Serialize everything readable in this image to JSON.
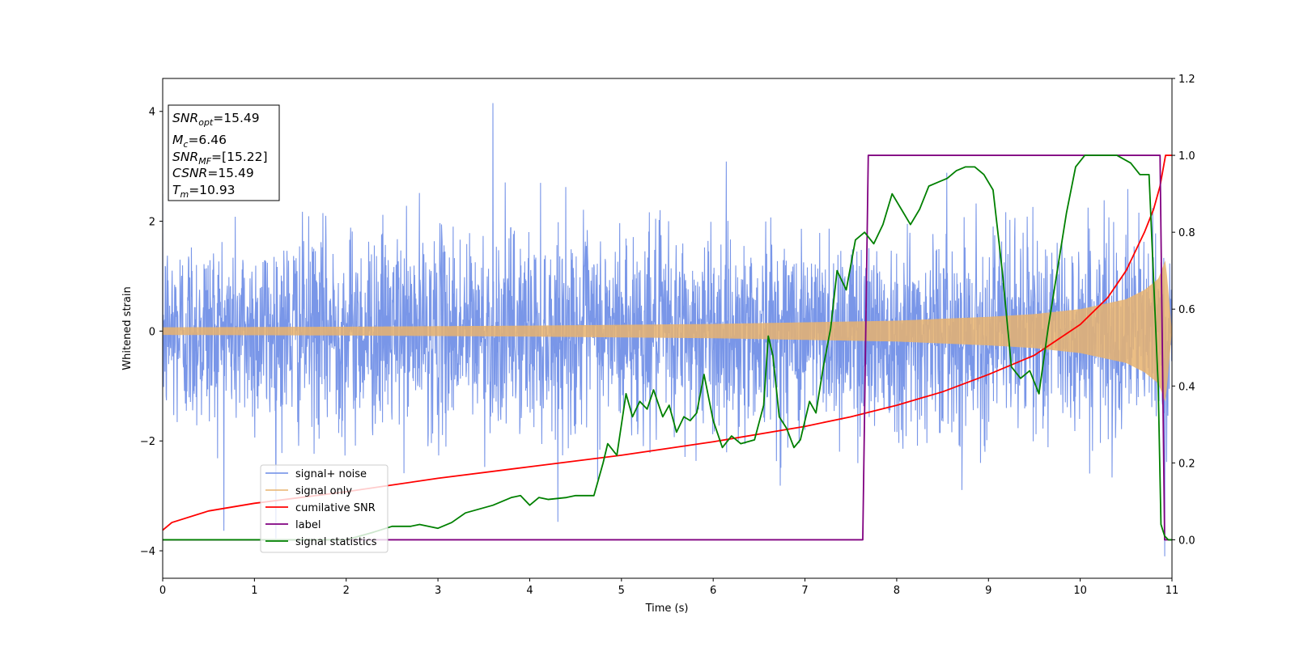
{
  "chart_data": {
    "type": "line",
    "xlabel": "Time (s)",
    "ylabel": "Whitened strain",
    "xlim": [
      0,
      11
    ],
    "ylim": [
      -4.5,
      4.6
    ],
    "y2lim": [
      -0.1,
      1.2
    ],
    "xticks": [
      "0",
      "1",
      "2",
      "3",
      "4",
      "5",
      "6",
      "7",
      "8",
      "9",
      "10",
      "11"
    ],
    "yticks": [
      "−4",
      "−2",
      "0",
      "2",
      "4"
    ],
    "y2ticks": [
      "0.0",
      "0.2",
      "0.4",
      "0.6",
      "0.8",
      "1.0",
      "1.2"
    ],
    "grid": false,
    "legend_position": "lower-left",
    "info_box": {
      "line1": "SNR_opt=15.49",
      "line2": "M_c=6.46",
      "line3": "SNR_MF=[15.22]",
      "line4": "CSNR=15.49",
      "line5": "T_m=10.93"
    },
    "series": [
      {
        "name": "signal+ noise",
        "axis": "left",
        "color": "#6a8be6",
        "description_values": {
          "std": 0.9,
          "max_peak": 4.15,
          "max_peak_time": 3.6,
          "min_peak": -4.1,
          "min_peak_time": 10.92
        }
      },
      {
        "name": "signal only",
        "axis": "left",
        "color": "#e8b36f",
        "envelope": {
          "x": [
            0,
            2,
            4,
            6,
            7,
            8,
            9,
            9.5,
            10,
            10.5,
            10.7,
            10.85,
            10.93,
            11
          ],
          "amplitude": [
            0.07,
            0.08,
            0.1,
            0.13,
            0.16,
            0.19,
            0.26,
            0.31,
            0.4,
            0.58,
            0.75,
            0.95,
            1.3,
            0
          ]
        }
      },
      {
        "name": "cumilative SNR",
        "axis": "right",
        "color": "#ff0000",
        "x": [
          0,
          0.1,
          0.5,
          1,
          2,
          3,
          4,
          5,
          6,
          7,
          7.5,
          8,
          8.5,
          9,
          9.5,
          10,
          10.3,
          10.5,
          10.7,
          10.8,
          10.87,
          10.9,
          10.93,
          11
        ],
        "y": [
          0.025,
          0.045,
          0.075,
          0.095,
          0.125,
          0.16,
          0.19,
          0.22,
          0.255,
          0.295,
          0.32,
          0.35,
          0.385,
          0.43,
          0.48,
          0.56,
          0.63,
          0.7,
          0.8,
          0.86,
          0.92,
          0.96,
          1.0,
          1.0
        ]
      },
      {
        "name": "label",
        "axis": "right",
        "color": "#800080",
        "x": [
          0,
          7.63,
          7.69,
          10.87,
          10.92,
          11
        ],
        "y": [
          0,
          0,
          1,
          1,
          0,
          0
        ]
      },
      {
        "name": "signal statistics",
        "axis": "right",
        "color": "#008000",
        "x": [
          0,
          1,
          2,
          2.3,
          2.5,
          2.7,
          2.8,
          3.0,
          3.15,
          3.3,
          3.45,
          3.6,
          3.7,
          3.8,
          3.9,
          4.0,
          4.1,
          4.2,
          4.4,
          4.5,
          4.6,
          4.7,
          4.8,
          4.85,
          4.95,
          5.05,
          5.12,
          5.2,
          5.28,
          5.35,
          5.45,
          5.52,
          5.6,
          5.68,
          5.75,
          5.82,
          5.9,
          6.0,
          6.1,
          6.2,
          6.3,
          6.45,
          6.55,
          6.6,
          6.65,
          6.72,
          6.8,
          6.88,
          6.95,
          7.05,
          7.12,
          7.2,
          7.28,
          7.35,
          7.45,
          7.55,
          7.65,
          7.75,
          7.85,
          7.95,
          8.05,
          8.15,
          8.25,
          8.35,
          8.45,
          8.55,
          8.65,
          8.75,
          8.85,
          8.95,
          9.05,
          9.15,
          9.25,
          9.35,
          9.45,
          9.55,
          9.65,
          9.75,
          9.85,
          9.95,
          10.05,
          10.2,
          10.4,
          10.55,
          10.65,
          10.75,
          10.85,
          10.88,
          10.92,
          10.96,
          11
        ],
        "y": [
          0.0,
          0.0,
          0.0,
          0.02,
          0.035,
          0.035,
          0.04,
          0.03,
          0.045,
          0.07,
          0.08,
          0.09,
          0.1,
          0.11,
          0.115,
          0.09,
          0.11,
          0.105,
          0.11,
          0.115,
          0.115,
          0.115,
          0.2,
          0.25,
          0.22,
          0.38,
          0.32,
          0.36,
          0.34,
          0.39,
          0.32,
          0.35,
          0.28,
          0.32,
          0.31,
          0.33,
          0.43,
          0.31,
          0.24,
          0.27,
          0.25,
          0.26,
          0.35,
          0.53,
          0.48,
          0.32,
          0.29,
          0.24,
          0.26,
          0.36,
          0.33,
          0.45,
          0.55,
          0.7,
          0.65,
          0.78,
          0.8,
          0.77,
          0.82,
          0.9,
          0.86,
          0.82,
          0.86,
          0.92,
          0.93,
          0.94,
          0.96,
          0.97,
          0.97,
          0.95,
          0.91,
          0.7,
          0.45,
          0.42,
          0.44,
          0.38,
          0.55,
          0.7,
          0.85,
          0.97,
          1.0,
          1.0,
          1.0,
          0.98,
          0.95,
          0.95,
          0.4,
          0.04,
          0.01,
          0.0,
          0.0
        ]
      }
    ]
  }
}
